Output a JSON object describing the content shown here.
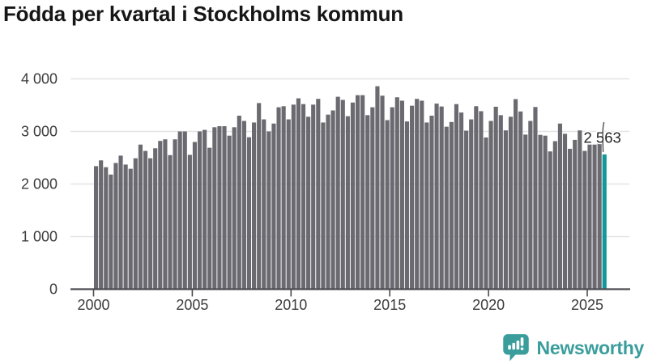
{
  "title": "Födda per kvartal i Stockholms kommun",
  "axis": {
    "y_ticks": [
      "0",
      "1 000",
      "2 000",
      "3 000",
      "4 000"
    ],
    "y_tick_values": [
      0,
      1000,
      2000,
      3000,
      4000
    ],
    "x_ticks": [
      "2000",
      "2005",
      "2010",
      "2015",
      "2020",
      "2025"
    ],
    "x_tick_years": [
      2000,
      2005,
      2010,
      2015,
      2020,
      2025
    ]
  },
  "chart_data": {
    "type": "bar",
    "title": "Födda per kvartal i Stockholms kommun",
    "x_start": "2000-Q1",
    "x_end": "2025-Q4",
    "ylim": [
      0,
      4000
    ],
    "grid": true,
    "legend": "none",
    "highlight": {
      "period": "2025-Q4",
      "value": 2563,
      "label": "2 563"
    },
    "series": [
      {
        "year": 2000,
        "values": [
          2340,
          2450,
          2320,
          2180
        ]
      },
      {
        "year": 2001,
        "values": [
          2400,
          2540,
          2370,
          2290
        ]
      },
      {
        "year": 2002,
        "values": [
          2490,
          2750,
          2630,
          2490
        ]
      },
      {
        "year": 2003,
        "values": [
          2680,
          2820,
          2850,
          2550
        ]
      },
      {
        "year": 2004,
        "values": [
          2850,
          3000,
          3000,
          2555
        ]
      },
      {
        "year": 2005,
        "values": [
          2800,
          3000,
          3030,
          2690
        ]
      },
      {
        "year": 2006,
        "values": [
          3080,
          3100,
          3100,
          2920
        ]
      },
      {
        "year": 2007,
        "values": [
          3080,
          3300,
          3200,
          2890
        ]
      },
      {
        "year": 2008,
        "values": [
          3170,
          3540,
          3230,
          3000
        ]
      },
      {
        "year": 2009,
        "values": [
          3150,
          3460,
          3480,
          3230
        ]
      },
      {
        "year": 2010,
        "values": [
          3510,
          3630,
          3520,
          3280
        ]
      },
      {
        "year": 2011,
        "values": [
          3510,
          3620,
          3170,
          3320
        ]
      },
      {
        "year": 2012,
        "values": [
          3400,
          3660,
          3600,
          3290
        ]
      },
      {
        "year": 2013,
        "values": [
          3550,
          3690,
          3690,
          3310
        ]
      },
      {
        "year": 2014,
        "values": [
          3460,
          3860,
          3680,
          3215
        ]
      },
      {
        "year": 2015,
        "values": [
          3460,
          3650,
          3585,
          3190
        ]
      },
      {
        "year": 2016,
        "values": [
          3490,
          3620,
          3585,
          3170
        ]
      },
      {
        "year": 2017,
        "values": [
          3300,
          3530,
          3475,
          3090
        ]
      },
      {
        "year": 2018,
        "values": [
          3180,
          3520,
          3360,
          3015
        ]
      },
      {
        "year": 2019,
        "values": [
          3230,
          3480,
          3385,
          2885
        ]
      },
      {
        "year": 2020,
        "values": [
          3200,
          3470,
          3310,
          3020
        ]
      },
      {
        "year": 2021,
        "values": [
          3280,
          3615,
          3380,
          2940
        ]
      },
      {
        "year": 2022,
        "values": [
          3200,
          3465,
          2935,
          2920
        ]
      },
      {
        "year": 2023,
        "values": [
          2620,
          2815,
          3150,
          2955
        ]
      },
      {
        "year": 2024,
        "values": [
          2670,
          2840,
          3020,
          2630
        ]
      },
      {
        "year": 2025,
        "values": [
          2750,
          2750,
          2780,
          2563
        ]
      }
    ]
  },
  "branding": {
    "logo_text": "Newsworthy",
    "logo_icon": "bar-chart-speech-bubble-icon"
  },
  "colors": {
    "bar": "#6b6a70",
    "highlight_bar": "#12989c",
    "grid": "#e4e4e6",
    "axis": "#4b4b50",
    "tick_text": "#3c3c3c",
    "annotation_text": "#252525",
    "brand": "#3a9d9c",
    "title_text": "#161616"
  }
}
